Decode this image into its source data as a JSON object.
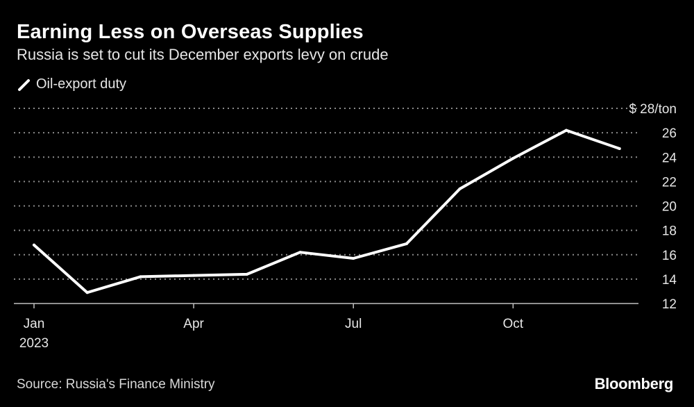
{
  "title": "Earning Less on Overseas Supplies",
  "subtitle": "Russia is set to cut its December exports levy on crude",
  "legend_label": "Oil-export duty",
  "source": "Source: Russia's Finance Ministry",
  "brand": "Bloomberg",
  "colors": {
    "background": "#000000",
    "line": "#ffffff",
    "grid": "#8c8c8c",
    "text": "#e6e6e6"
  },
  "chart_data": {
    "type": "line",
    "title": "Earning Less on Overseas Supplies",
    "subtitle": "Russia is set to cut its December exports levy on crude",
    "xlabel": "",
    "ylabel": "$ 28/ton",
    "ylim": [
      12,
      28
    ],
    "y_ticks": [
      12,
      14,
      16,
      18,
      20,
      22,
      24,
      26
    ],
    "y_top_label": "$ 28/ton",
    "x_ticks": [
      {
        "month_index": 0,
        "label": "Jan",
        "sublabel": "2023"
      },
      {
        "month_index": 3,
        "label": "Apr",
        "sublabel": ""
      },
      {
        "month_index": 6,
        "label": "Jul",
        "sublabel": ""
      },
      {
        "month_index": 9,
        "label": "Oct",
        "sublabel": ""
      }
    ],
    "x_range_months": [
      0,
      11.4
    ],
    "grid": true,
    "legend": "top-left",
    "series": [
      {
        "name": "Oil-export duty",
        "x": [
          "Jan",
          "Feb",
          "Mar",
          "Apr",
          "May",
          "Jun",
          "Jul",
          "Aug",
          "Sep",
          "Oct",
          "Nov",
          "Dec"
        ],
        "values": [
          16.8,
          12.9,
          14.2,
          14.3,
          14.4,
          16.2,
          15.7,
          16.9,
          21.4,
          23.9,
          26.2,
          24.7
        ]
      }
    ]
  }
}
